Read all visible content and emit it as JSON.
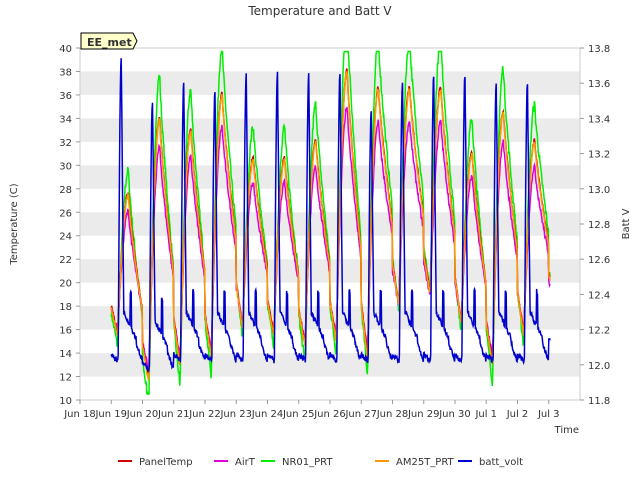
{
  "chart_data": {
    "type": "line",
    "title": "Temperature and Batt V",
    "xlabel": "Time",
    "ylabel": "Temperature (C)",
    "y2label": "Batt V",
    "badge": "EE_met",
    "x_ticks": [
      "Jun 18",
      "Jun 19",
      "Jun 20",
      "Jun 21",
      "Jun 22",
      "Jun 23",
      "Jun 24",
      "Jun 25",
      "Jun 26",
      "Jun 27",
      "Jun 28",
      "Jun 29",
      "Jun 30",
      "Jul 1",
      "Jul 2",
      "Jul 3"
    ],
    "xlim_days": [
      17,
      33
    ],
    "ylim": [
      10,
      40
    ],
    "y_ticks": [
      10,
      12,
      14,
      16,
      18,
      20,
      22,
      24,
      26,
      28,
      30,
      32,
      34,
      36,
      38,
      40
    ],
    "y2lim": [
      11.8,
      13.8
    ],
    "y2_ticks": [
      "11.8",
      "12.0",
      "12.2",
      "12.4",
      "12.6",
      "12.8",
      "13.0",
      "13.2",
      "13.4",
      "13.6",
      "13.8"
    ],
    "grid": "horizontal bands",
    "legend_position": "bottom",
    "series": [
      {
        "name": "PanelTemp",
        "color": "#cc0000",
        "axis": "left"
      },
      {
        "name": "AirT",
        "color": "#dd00dd",
        "axis": "left"
      },
      {
        "name": "NR01_PRT",
        "color": "#00ee00",
        "axis": "left"
      },
      {
        "name": "AM25T_PRT",
        "color": "#ff9900",
        "axis": "left"
      },
      {
        "name": "batt_volt",
        "color": "#0000cc",
        "axis": "right"
      }
    ],
    "daily_temp": {
      "dates": [
        "Jun 18",
        "Jun 19",
        "Jun 20",
        "Jun 21",
        "Jun 22",
        "Jun 23",
        "Jun 24",
        "Jun 25",
        "Jun 26",
        "Jun 27",
        "Jun 28",
        "Jun 29",
        "Jun 30",
        "Jul 1",
        "Jul 2"
      ],
      "min": [
        15.5,
        11.5,
        12.8,
        13.5,
        16,
        15.5,
        14.5,
        15,
        13.5,
        18,
        19,
        16.5,
        13,
        15.5,
        18
      ],
      "max": [
        27.5,
        34,
        33,
        36,
        30.5,
        30.5,
        32,
        38,
        36.5,
        36.5,
        36.5,
        31,
        34.5,
        32,
        31.5
      ]
    },
    "daily_batt": {
      "min": [
        12.0,
        11.95,
        12.0,
        12.0,
        12.0,
        12.0,
        12.0,
        12.0,
        12.0,
        12.0,
        12.0,
        12.0,
        12.0,
        12.0,
        12.1
      ],
      "max": [
        13.75,
        13.5,
        13.6,
        13.55,
        13.65,
        13.65,
        13.65,
        13.66,
        13.45,
        13.6,
        13.65,
        13.65,
        13.6,
        13.6,
        13.3
      ]
    }
  }
}
